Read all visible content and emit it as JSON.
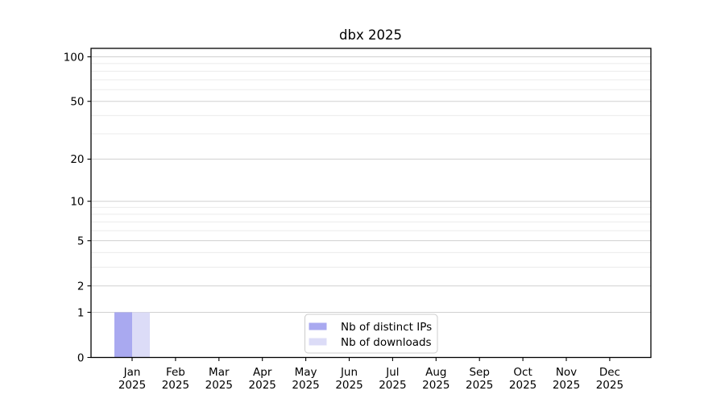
{
  "chart_data": {
    "type": "bar",
    "title": "dbx 2025",
    "categories": [
      "Jan",
      "Feb",
      "Mar",
      "Apr",
      "May",
      "Jun",
      "Jul",
      "Aug",
      "Sep",
      "Oct",
      "Nov",
      "Dec"
    ],
    "category_second_line": "2025",
    "series": [
      {
        "name": "Nb of distinct IPs",
        "color": "#a9a9f0",
        "values": [
          1,
          0,
          0,
          0,
          0,
          0,
          0,
          0,
          0,
          0,
          0,
          0
        ]
      },
      {
        "name": "Nb of downloads",
        "color": "#dcdcf7",
        "values": [
          1,
          0,
          0,
          0,
          0,
          0,
          0,
          0,
          0,
          0,
          0,
          0
        ]
      }
    ],
    "xlabel": "",
    "ylabel": "",
    "yscale": "log1p",
    "ylim": [
      0,
      114
    ],
    "y_ticks": [
      0,
      1,
      2,
      5,
      10,
      20,
      50,
      100
    ],
    "y_minor_ticks": [
      3,
      4,
      6,
      7,
      8,
      9,
      30,
      40,
      60,
      70,
      80,
      90
    ],
    "grid": true,
    "legend_position": "lower center inside",
    "colors": {
      "axis": "#000000",
      "text": "#000000",
      "grid_major": "#d0d0d0",
      "grid_minor": "#ebebeb",
      "background": "#ffffff",
      "legend_border": "#cccccc",
      "legend_fill": "#ffffff"
    }
  }
}
